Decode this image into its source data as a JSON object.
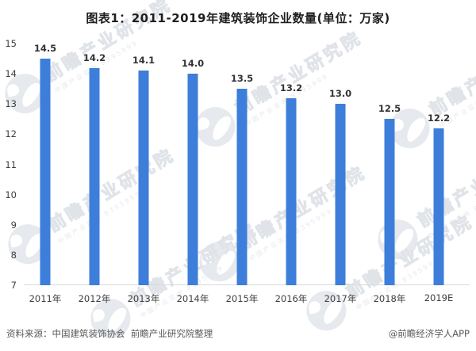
{
  "chart_data": {
    "type": "bar",
    "title": "图表1：2011-2019年建筑装饰企业数量(单位：万家)",
    "categories": [
      "2011年",
      "2012年",
      "2013年",
      "2014年",
      "2015年",
      "2016年",
      "2017年",
      "2018年",
      "2019E"
    ],
    "values": [
      14.5,
      14.2,
      14.1,
      14.0,
      13.5,
      13.2,
      13.0,
      12.5,
      12.2
    ],
    "value_labels": [
      "14.5",
      "14.2",
      "14.1",
      "14.0",
      "13.5",
      "13.2",
      "13.0",
      "12.5",
      "12.2"
    ],
    "xlabel": "",
    "ylabel": "",
    "ylim": [
      7,
      15
    ],
    "yticks": [
      15,
      14,
      13,
      12,
      11,
      10,
      9,
      8,
      7
    ],
    "grid": false,
    "legend": "none",
    "bar_color": "#3d7eda"
  },
  "footer": {
    "source": "资料来源：中国建筑装饰协会  前瞻产业研究院整理",
    "credit": "@前瞻经济学人APP"
  },
  "watermark": {
    "logo": "qianzhan-logo",
    "text": "前瞻产业研究院",
    "subtext": "中国产业咨询 8395999"
  },
  "colors": {
    "bar": "#3d7eda",
    "axis_line": "#d9d9d9",
    "title_text": "#1f1f1f",
    "axis_text": "#404040",
    "data_label_text": "#333333",
    "footer_text": "#595959",
    "watermark": "#e6e9ed"
  }
}
